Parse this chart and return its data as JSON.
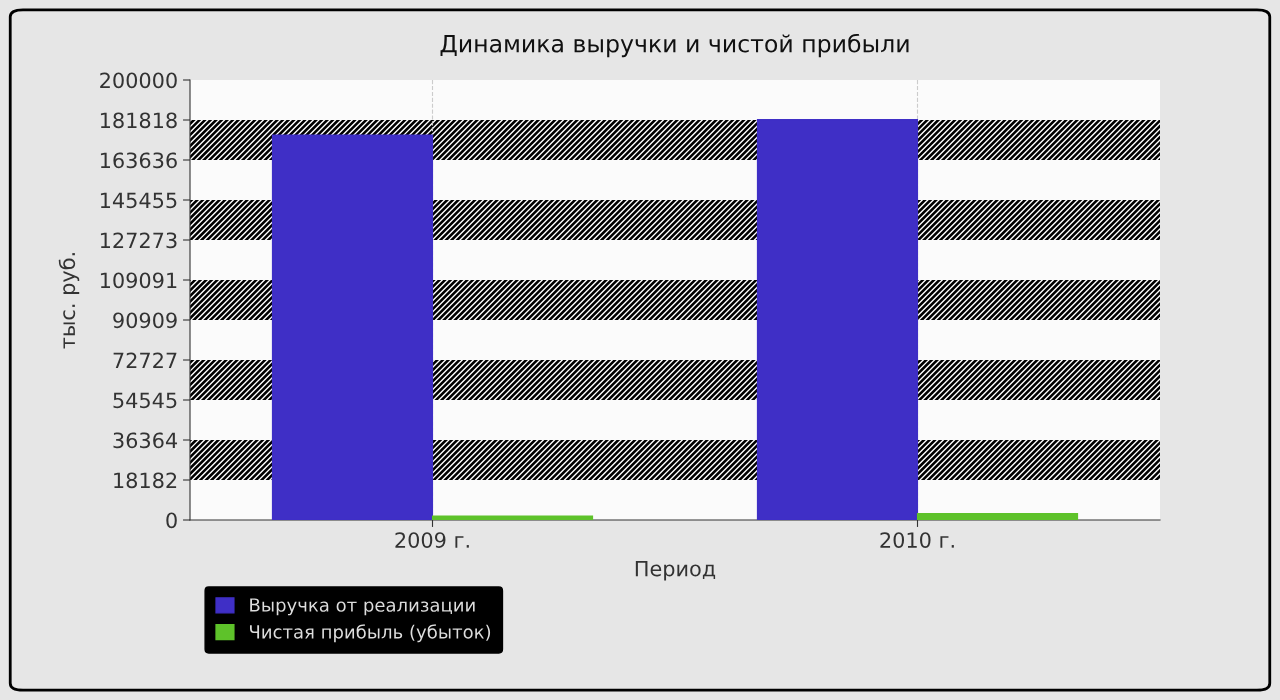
{
  "chart_data": {
    "type": "bar",
    "title": "Динамика выручки и чистой прибыли",
    "xlabel": "Период",
    "ylabel": "тыс. руб.",
    "categories": [
      "2009 г.",
      "2010 г."
    ],
    "series": [
      {
        "name": "Выручка от реализации",
        "color": "#3f2fc6",
        "values": [
          175000,
          182000
        ]
      },
      {
        "name": "Чистая прибыль (убыток)",
        "color": "#5ec22a",
        "values": [
          1800,
          2900
        ]
      }
    ],
    "ylim": [
      0,
      200000
    ],
    "yticks": [
      0,
      18182,
      36364,
      54545,
      72727,
      90909,
      109091,
      127273,
      145455,
      163636,
      181818,
      200000
    ],
    "bands": [
      {
        "axis": "y",
        "from": 18182,
        "to": 36364,
        "color": "#000000"
      },
      {
        "axis": "y",
        "from": 54545,
        "to": 72727,
        "color": "#000000"
      },
      {
        "axis": "y",
        "from": 90909,
        "to": 109091,
        "color": "#000000"
      },
      {
        "axis": "y",
        "from": 127273,
        "to": 145455,
        "color": "#000000"
      },
      {
        "axis": "y",
        "from": 163636,
        "to": 181818,
        "color": "#000000"
      }
    ],
    "grid": "x",
    "legend": "bottom left"
  }
}
